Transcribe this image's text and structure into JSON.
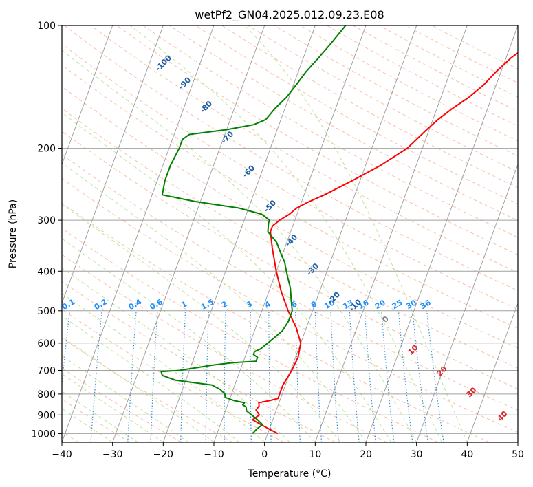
{
  "chart_data": {
    "type": "line",
    "chart_kind": "skew-T log-P",
    "title": "wetPf2_GN04.2025.012.09.23.E08",
    "xlabel": "Temperature (°C)",
    "ylabel": "Pressure (hPa)",
    "xlim": [
      -40,
      50
    ],
    "ylim": [
      1050,
      100
    ],
    "y_scale": "log",
    "x_ticks": [
      -40,
      -30,
      -20,
      -10,
      0,
      10,
      20,
      30,
      40,
      50
    ],
    "y_ticks": [
      100,
      200,
      300,
      400,
      500,
      600,
      700,
      800,
      900,
      1000
    ],
    "grid": true,
    "series": [
      {
        "color": "#ff0000",
        "points": [
          [
            1000,
            2.0
          ],
          [
            975,
            0.0
          ],
          [
            950,
            -2.0
          ],
          [
            925,
            -4.0
          ],
          [
            900,
            -3.0
          ],
          [
            875,
            -4.0
          ],
          [
            855,
            -3.7
          ],
          [
            840,
            -4.0
          ],
          [
            830,
            -2.0
          ],
          [
            820,
            -0.5
          ],
          [
            800,
            -0.5
          ],
          [
            760,
            -0.5
          ],
          [
            700,
            0.2
          ],
          [
            650,
            0.5
          ],
          [
            600,
            0.0
          ],
          [
            550,
            -2.0
          ],
          [
            500,
            -4.8
          ],
          [
            450,
            -7.5
          ],
          [
            400,
            -10.0
          ],
          [
            350,
            -12.5
          ],
          [
            320,
            -14.0
          ],
          [
            310,
            -14.0
          ],
          [
            300,
            -13.0
          ],
          [
            290,
            -11.5
          ],
          [
            280,
            -10.5
          ],
          [
            270,
            -8.5
          ],
          [
            260,
            -6.0
          ],
          [
            240,
            -1.5
          ],
          [
            220,
            3.0
          ],
          [
            200,
            7.0
          ],
          [
            180,
            9.5
          ],
          [
            170,
            11.0
          ],
          [
            160,
            13.0
          ],
          [
            150,
            15.5
          ],
          [
            140,
            17.5
          ],
          [
            130,
            19.0
          ],
          [
            120,
            21.0
          ],
          [
            115,
            22.5
          ],
          [
            110,
            22.5
          ],
          [
            105,
            23.0
          ],
          [
            100,
            23.5
          ]
        ]
      },
      {
        "color": "#008000",
        "points": [
          [
            1000,
            -3.0
          ],
          [
            975,
            -2.5
          ],
          [
            950,
            -1.7
          ],
          [
            925,
            -3.0
          ],
          [
            900,
            -4.5
          ],
          [
            880,
            -5.8
          ],
          [
            860,
            -6.2
          ],
          [
            850,
            -7.0
          ],
          [
            840,
            -6.8
          ],
          [
            830,
            -9.0
          ],
          [
            815,
            -11.0
          ],
          [
            800,
            -11.3
          ],
          [
            780,
            -12.5
          ],
          [
            760,
            -14.5
          ],
          [
            740,
            -22.0
          ],
          [
            720,
            -25.0
          ],
          [
            705,
            -25.5
          ],
          [
            700,
            -22.0
          ],
          [
            690,
            -19.0
          ],
          [
            680,
            -16.0
          ],
          [
            670,
            -12.0
          ],
          [
            665,
            -7.5
          ],
          [
            650,
            -7.5
          ],
          [
            640,
            -8.5
          ],
          [
            630,
            -8.5
          ],
          [
            620,
            -7.5
          ],
          [
            600,
            -6.5
          ],
          [
            580,
            -5.5
          ],
          [
            560,
            -4.5
          ],
          [
            530,
            -4.0
          ],
          [
            500,
            -4.0
          ],
          [
            470,
            -5.0
          ],
          [
            440,
            -6.0
          ],
          [
            410,
            -7.5
          ],
          [
            400,
            -8.0
          ],
          [
            380,
            -9.0
          ],
          [
            360,
            -10.5
          ],
          [
            340,
            -12.0
          ],
          [
            320,
            -14.5
          ],
          [
            305,
            -15.0
          ],
          [
            300,
            -15.0
          ],
          [
            290,
            -17.0
          ],
          [
            280,
            -22.0
          ],
          [
            270,
            -31.0
          ],
          [
            260,
            -38.0
          ],
          [
            240,
            -38.5
          ],
          [
            220,
            -38.5
          ],
          [
            200,
            -38.0
          ],
          [
            190,
            -38.0
          ],
          [
            185,
            -37.0
          ],
          [
            180,
            -30.0
          ],
          [
            175,
            -25.0
          ],
          [
            170,
            -23.0
          ],
          [
            165,
            -22.5
          ],
          [
            160,
            -22.0
          ],
          [
            150,
            -20.5
          ],
          [
            140,
            -19.5
          ],
          [
            130,
            -18.5
          ],
          [
            120,
            -17.0
          ],
          [
            110,
            -15.5
          ],
          [
            100,
            -14.0
          ]
        ]
      }
    ],
    "dry_adiabats_label_values": [
      -100,
      -90,
      -80,
      -70,
      -60,
      -50,
      -40,
      -30,
      -20,
      -10,
      0,
      10,
      20,
      30,
      40
    ],
    "mixing_ratio_labels": [
      "0.1",
      "0.2",
      "0.4",
      "0.6",
      "1",
      "1.5",
      "2",
      "3",
      "4",
      "6",
      "8",
      "10",
      "13",
      "16",
      "20",
      "25",
      "30",
      "36"
    ],
    "isotherm_label_values": [
      "10",
      "20",
      "30",
      "40"
    ],
    "colors": {
      "temperature": "#ff0000",
      "dewpoint": "#008000",
      "dry_adiabat": "#f4a582",
      "moist_adiabat": "#a6d96a",
      "mixing_ratio": "#1f78b4",
      "isotherm": "#808080"
    }
  }
}
